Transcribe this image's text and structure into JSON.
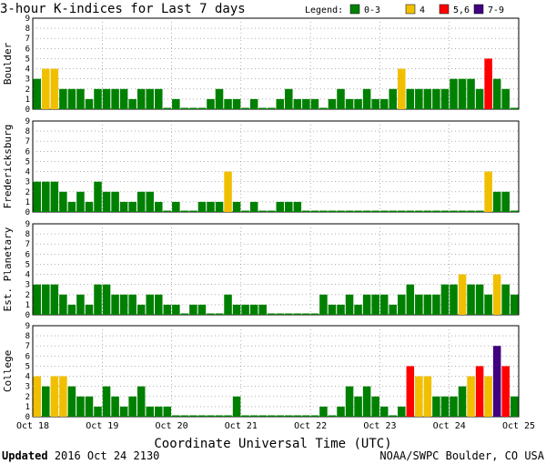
{
  "chart_data": {
    "type": "bar",
    "title": "3-hour K-indices for Last 7 days",
    "xlabel": "Coordinate Universal Time (UTC)",
    "x_tick_labels": [
      "Oct 18",
      "Oct 19",
      "Oct 20",
      "Oct 21",
      "Oct 22",
      "Oct 23",
      "Oct 24",
      "Oct 25"
    ],
    "ylim": [
      0,
      9
    ],
    "y_ticks": [
      0,
      1,
      2,
      3,
      4,
      5,
      6,
      7,
      8,
      9
    ],
    "grid": true,
    "legend": {
      "label": "Legend:",
      "placement": "top-right",
      "entries": [
        {
          "label": "0-3",
          "color": "#008000"
        },
        {
          "label": "4",
          "color": "#f0c000"
        },
        {
          "label": "5,6",
          "color": "#ff0000"
        },
        {
          "label": "7-9",
          "color": "#400080"
        }
      ]
    },
    "series": [
      {
        "name": "Boulder",
        "values": [
          3,
          4,
          4,
          2,
          2,
          2,
          1,
          2,
          2,
          2,
          2,
          1,
          2,
          2,
          2,
          0,
          1,
          0,
          0,
          0,
          1,
          2,
          1,
          1,
          0,
          1,
          0,
          0,
          1,
          2,
          1,
          1,
          1,
          0,
          1,
          2,
          1,
          1,
          2,
          1,
          1,
          2,
          4,
          2,
          2,
          2,
          2,
          2,
          3,
          3,
          3,
          2,
          5,
          3,
          2,
          0
        ]
      },
      {
        "name": "Fredericksburg",
        "values": [
          3,
          3,
          3,
          2,
          1,
          2,
          1,
          3,
          2,
          2,
          1,
          1,
          2,
          2,
          1,
          0,
          1,
          0,
          0,
          1,
          1,
          1,
          4,
          1,
          0,
          1,
          0,
          0,
          1,
          1,
          1,
          0,
          0,
          0,
          0,
          0,
          0,
          0,
          0,
          0,
          0,
          0,
          0,
          0,
          0,
          0,
          0,
          0,
          0,
          0,
          0,
          0,
          4,
          2,
          2,
          0
        ]
      },
      {
        "name": "Est. Planetary",
        "values": [
          3,
          3,
          3,
          2,
          1,
          2,
          1,
          3,
          3,
          2,
          2,
          2,
          1,
          2,
          2,
          1,
          1,
          0,
          1,
          1,
          0,
          0,
          2,
          1,
          1,
          1,
          1,
          0,
          0,
          0,
          0,
          0,
          0,
          2,
          1,
          1,
          2,
          1,
          2,
          2,
          2,
          1,
          2,
          3,
          2,
          2,
          2,
          3,
          3,
          4,
          3,
          3,
          2,
          4,
          3,
          2
        ]
      },
      {
        "name": "College",
        "values": [
          4,
          3,
          4,
          4,
          3,
          2,
          2,
          1,
          3,
          2,
          1,
          2,
          3,
          1,
          1,
          1,
          0,
          0,
          0,
          0,
          0,
          0,
          0,
          2,
          0,
          0,
          0,
          0,
          0,
          0,
          0,
          0,
          0,
          1,
          0,
          1,
          3,
          2,
          3,
          2,
          1,
          0,
          1,
          5,
          4,
          4,
          2,
          2,
          2,
          3,
          4,
          5,
          4,
          7,
          5,
          2
        ]
      }
    ]
  },
  "footer": {
    "updated_label": "Updated",
    "updated_value": "2016 Oct 24 2130",
    "credit": "NOAA/SWPC Boulder, CO USA"
  }
}
